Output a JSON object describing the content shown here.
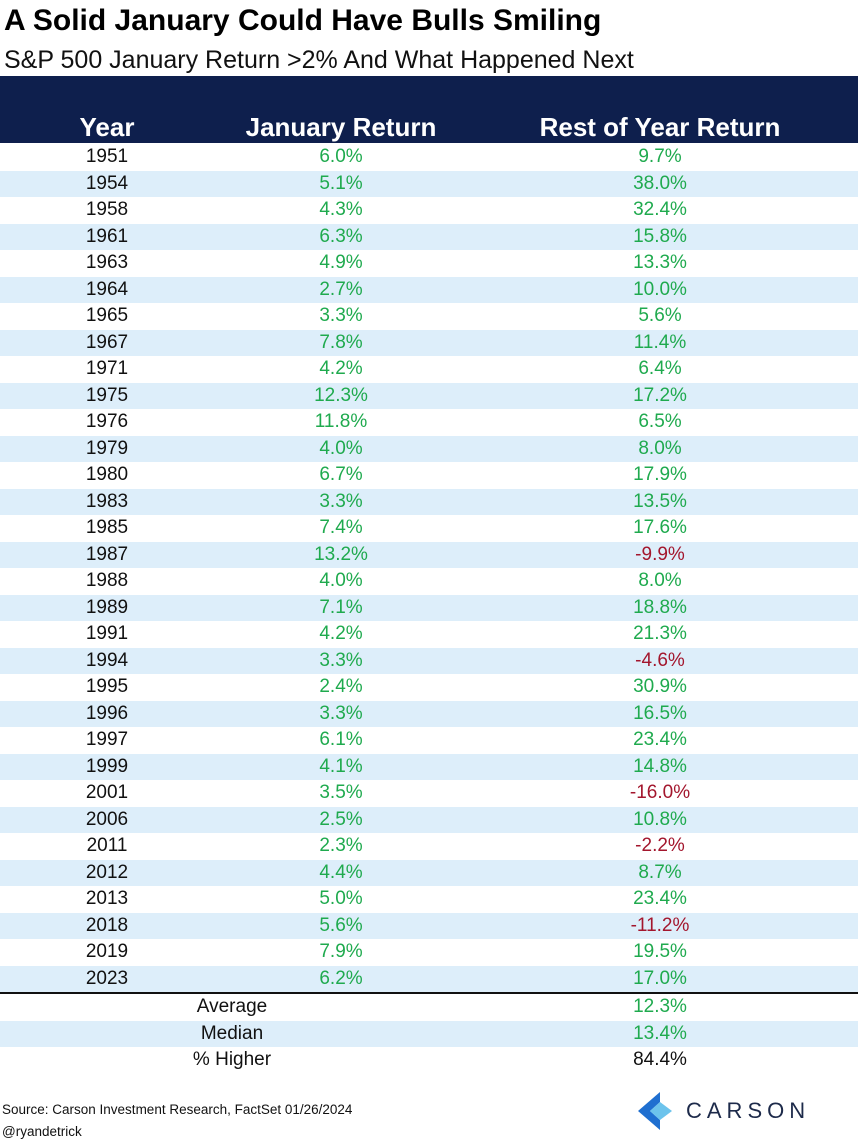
{
  "title": "A Solid January Could Have Bulls Smiling",
  "subtitle": "S&P 500 January Return >2% And What Happened Next",
  "colors": {
    "header_bg": "#0e1f4d",
    "row_alt_bg": "#ddeefa",
    "positive": "#1faa4e",
    "negative": "#a3162d"
  },
  "chart_data": {
    "type": "table",
    "columns": [
      "Year",
      "January Return",
      "Rest of Year Return"
    ],
    "rows": [
      {
        "year": "1951",
        "jan": "6.0%",
        "rest": "9.7%"
      },
      {
        "year": "1954",
        "jan": "5.1%",
        "rest": "38.0%"
      },
      {
        "year": "1958",
        "jan": "4.3%",
        "rest": "32.4%"
      },
      {
        "year": "1961",
        "jan": "6.3%",
        "rest": "15.8%"
      },
      {
        "year": "1963",
        "jan": "4.9%",
        "rest": "13.3%"
      },
      {
        "year": "1964",
        "jan": "2.7%",
        "rest": "10.0%"
      },
      {
        "year": "1965",
        "jan": "3.3%",
        "rest": "5.6%"
      },
      {
        "year": "1967",
        "jan": "7.8%",
        "rest": "11.4%"
      },
      {
        "year": "1971",
        "jan": "4.2%",
        "rest": "6.4%"
      },
      {
        "year": "1975",
        "jan": "12.3%",
        "rest": "17.2%"
      },
      {
        "year": "1976",
        "jan": "11.8%",
        "rest": "6.5%"
      },
      {
        "year": "1979",
        "jan": "4.0%",
        "rest": "8.0%"
      },
      {
        "year": "1980",
        "jan": "6.7%",
        "rest": "17.9%"
      },
      {
        "year": "1983",
        "jan": "3.3%",
        "rest": "13.5%"
      },
      {
        "year": "1985",
        "jan": "7.4%",
        "rest": "17.6%"
      },
      {
        "year": "1987",
        "jan": "13.2%",
        "rest": "-9.9%"
      },
      {
        "year": "1988",
        "jan": "4.0%",
        "rest": "8.0%"
      },
      {
        "year": "1989",
        "jan": "7.1%",
        "rest": "18.8%"
      },
      {
        "year": "1991",
        "jan": "4.2%",
        "rest": "21.3%"
      },
      {
        "year": "1994",
        "jan": "3.3%",
        "rest": "-4.6%"
      },
      {
        "year": "1995",
        "jan": "2.4%",
        "rest": "30.9%"
      },
      {
        "year": "1996",
        "jan": "3.3%",
        "rest": "16.5%"
      },
      {
        "year": "1997",
        "jan": "6.1%",
        "rest": "23.4%"
      },
      {
        "year": "1999",
        "jan": "4.1%",
        "rest": "14.8%"
      },
      {
        "year": "2001",
        "jan": "3.5%",
        "rest": "-16.0%"
      },
      {
        "year": "2006",
        "jan": "2.5%",
        "rest": "10.8%"
      },
      {
        "year": "2011",
        "jan": "2.3%",
        "rest": "-2.2%"
      },
      {
        "year": "2012",
        "jan": "4.4%",
        "rest": "8.7%"
      },
      {
        "year": "2013",
        "jan": "5.0%",
        "rest": "23.4%"
      },
      {
        "year": "2018",
        "jan": "5.6%",
        "rest": "-11.2%"
      },
      {
        "year": "2019",
        "jan": "7.9%",
        "rest": "19.5%"
      },
      {
        "year": "2023",
        "jan": "6.2%",
        "rest": "17.0%"
      }
    ],
    "summary": [
      {
        "label": "Average",
        "value": "12.3%",
        "color": "positive"
      },
      {
        "label": "Median",
        "value": "13.4%",
        "color": "positive"
      },
      {
        "label": "% Higher",
        "value": "84.4%",
        "color": "black"
      }
    ]
  },
  "footer": {
    "source": "Source: Carson Investment Research, FactSet 01/26/2024",
    "handle": "@ryandetrick",
    "logo_text": "CARSON"
  }
}
